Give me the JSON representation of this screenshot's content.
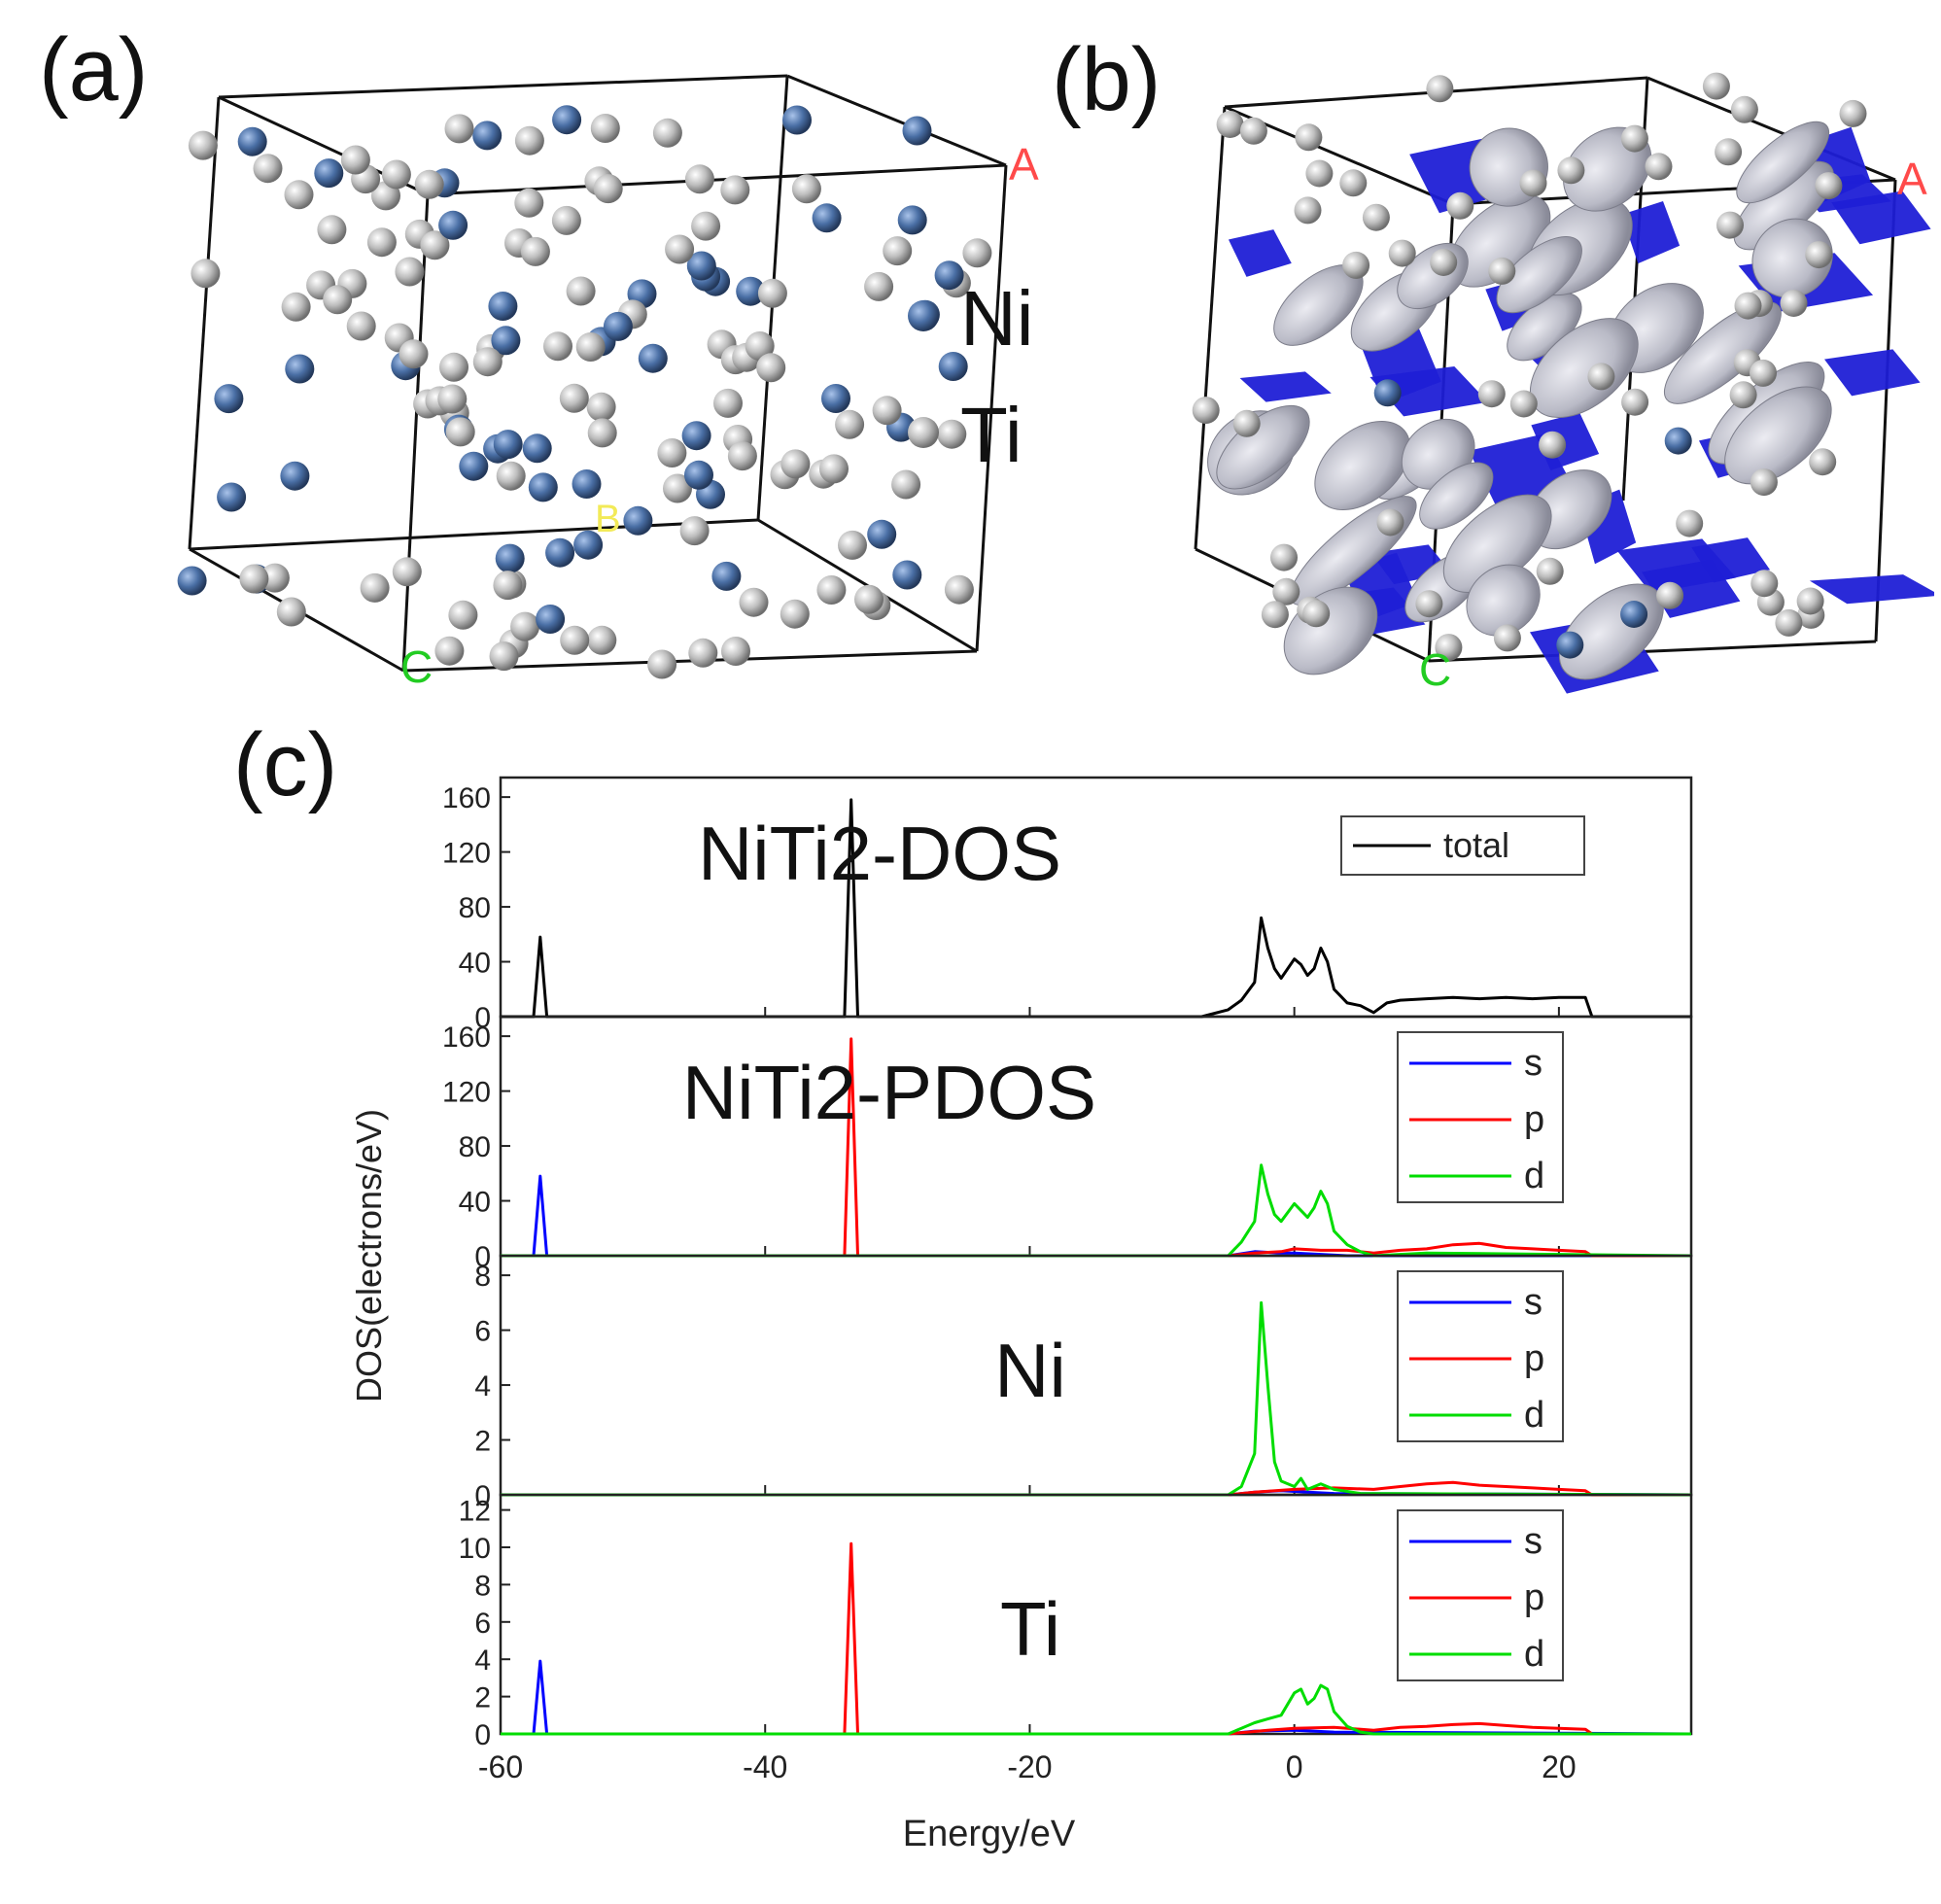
{
  "panels": {
    "a": {
      "label": "(a)",
      "axis_labels": [
        "A",
        "B",
        "C"
      ],
      "legend": [
        {
          "name": "Ni",
          "color": "#4a6fa5"
        },
        {
          "name": "Ti",
          "color": "#bdbdbd"
        }
      ]
    },
    "b": {
      "label": "(b)",
      "axis_labels": [
        "A",
        "C"
      ],
      "isosurface_colors": [
        "#1f1fd6",
        "#c4c4cc"
      ]
    },
    "c": {
      "label": "(c)"
    }
  },
  "chart_data": {
    "type": "line",
    "xlabel": "Energy/eV",
    "ylabel": "DOS(electrons/eV)",
    "xlim": [
      -60,
      30
    ],
    "xticks": [
      -60,
      -40,
      -20,
      0,
      20
    ],
    "colors": {
      "total": "#000000",
      "s": "#0000ff",
      "p": "#ff0000",
      "d": "#00dd00"
    },
    "subplots": [
      {
        "title": "NiTi2-DOS",
        "ylim": [
          0,
          170
        ],
        "yticks": [
          0,
          40,
          80,
          120,
          160
        ],
        "legend": [
          "total"
        ],
        "series": [
          {
            "name": "total",
            "color": "#000000",
            "x": [
              -60,
              -57.5,
              -57.0,
              -56.5,
              -34.0,
              -33.5,
              -33.0,
              -7,
              -5,
              -4,
              -3,
              -2.5,
              -2,
              -1.5,
              -1,
              0,
              0.5,
              1,
              1.5,
              2,
              2.5,
              3,
              3.5,
              4,
              5,
              6,
              7,
              8,
              10,
              12,
              14,
              16,
              18,
              20,
              22,
              22.5,
              30
            ],
            "y": [
              0,
              0,
              58,
              0,
              0,
              158,
              0,
              0,
              5,
              12,
              25,
              72,
              50,
              35,
              28,
              42,
              38,
              30,
              35,
              50,
              40,
              20,
              15,
              10,
              8,
              3,
              10,
              12,
              13,
              14,
              13,
              14,
              13,
              14,
              14,
              0,
              0
            ]
          }
        ]
      },
      {
        "title": "NiTi2-PDOS",
        "ylim": [
          0,
          170
        ],
        "yticks": [
          0,
          40,
          80,
          120,
          160
        ],
        "legend": [
          "s",
          "p",
          "d"
        ],
        "series": [
          {
            "name": "s",
            "color": "#0000ff",
            "x": [
              -60,
              -57.5,
              -57.0,
              -56.5,
              -5,
              -3,
              -1,
              0,
              2,
              4,
              30
            ],
            "y": [
              0,
              0,
              58,
              0,
              0,
              3,
              2,
              2,
              1,
              0,
              0
            ]
          },
          {
            "name": "p",
            "color": "#ff0000",
            "x": [
              -60,
              -34.0,
              -33.5,
              -33.0,
              -5,
              -3,
              -1,
              0,
              2,
              4,
              6,
              8,
              10,
              12,
              14,
              16,
              18,
              20,
              22,
              22.5,
              30
            ],
            "y": [
              0,
              0,
              158,
              0,
              0,
              2,
              3,
              5,
              4,
              4,
              2,
              4,
              5,
              8,
              9,
              6,
              5,
              4,
              3,
              0,
              0
            ]
          },
          {
            "name": "d",
            "color": "#00dd00",
            "x": [
              -60,
              -5,
              -4,
              -3,
              -2.5,
              -2,
              -1.5,
              -1,
              0,
              0.5,
              1,
              1.5,
              2,
              2.5,
              3,
              4,
              5,
              6,
              10,
              20,
              30
            ],
            "y": [
              0,
              0,
              10,
              25,
              66,
              45,
              30,
              25,
              38,
              33,
              28,
              35,
              47,
              38,
              18,
              8,
              3,
              0,
              2,
              1,
              0
            ]
          }
        ]
      },
      {
        "title": "Ni",
        "ylim": [
          0,
          8.5
        ],
        "yticks": [
          0,
          2,
          4,
          6,
          8
        ],
        "legend": [
          "s",
          "p",
          "d"
        ],
        "series": [
          {
            "name": "s",
            "color": "#0000ff",
            "x": [
              -60,
              -5,
              -3,
              -1,
              1,
              3,
              30
            ],
            "y": [
              0,
              0,
              0.1,
              0.15,
              0.1,
              0.05,
              0
            ]
          },
          {
            "name": "p",
            "color": "#ff0000",
            "x": [
              -60,
              -5,
              -3,
              0,
              3,
              6,
              8,
              10,
              12,
              14,
              16,
              18,
              20,
              22,
              22.5,
              30
            ],
            "y": [
              0,
              0,
              0.1,
              0.2,
              0.25,
              0.2,
              0.3,
              0.4,
              0.45,
              0.35,
              0.3,
              0.25,
              0.2,
              0.15,
              0,
              0
            ]
          },
          {
            "name": "d",
            "color": "#00dd00",
            "x": [
              -60,
              -5,
              -4,
              -3,
              -2.5,
              -2,
              -1.5,
              -1,
              0,
              0.5,
              1,
              2,
              3,
              5,
              30
            ],
            "y": [
              0,
              0,
              0.3,
              1.5,
              7.0,
              4.0,
              1.2,
              0.5,
              0.3,
              0.6,
              0.2,
              0.4,
              0.2,
              0.05,
              0
            ]
          }
        ]
      },
      {
        "title": "Ti",
        "ylim": [
          0,
          12.5
        ],
        "yticks": [
          0,
          2,
          4,
          6,
          8,
          10,
          12
        ],
        "legend": [
          "s",
          "p",
          "d"
        ],
        "series": [
          {
            "name": "s",
            "color": "#0000ff",
            "x": [
              -60,
              -57.5,
              -57.0,
              -56.5,
              -5,
              -3,
              0,
              3,
              30
            ],
            "y": [
              0,
              0,
              3.9,
              0,
              0,
              0.15,
              0.2,
              0.1,
              0
            ]
          },
          {
            "name": "p",
            "color": "#ff0000",
            "x": [
              -60,
              -34.0,
              -33.5,
              -33.0,
              -5,
              -2,
              0,
              3,
              6,
              8,
              10,
              12,
              14,
              16,
              18,
              20,
              22,
              22.5,
              30
            ],
            "y": [
              0,
              0,
              10.2,
              0,
              0,
              0.2,
              0.3,
              0.35,
              0.2,
              0.35,
              0.4,
              0.5,
              0.55,
              0.45,
              0.35,
              0.3,
              0.25,
              0,
              0
            ]
          },
          {
            "name": "d",
            "color": "#00dd00",
            "x": [
              -60,
              -5,
              -4,
              -3,
              -2,
              -1,
              0,
              0.5,
              1,
              1.5,
              2,
              2.5,
              3,
              4,
              5,
              6,
              30
            ],
            "y": [
              0,
              0,
              0.3,
              0.6,
              0.8,
              1.0,
              2.2,
              2.4,
              1.6,
              1.9,
              2.6,
              2.4,
              1.2,
              0.4,
              0.1,
              0,
              0
            ]
          }
        ]
      }
    ]
  }
}
